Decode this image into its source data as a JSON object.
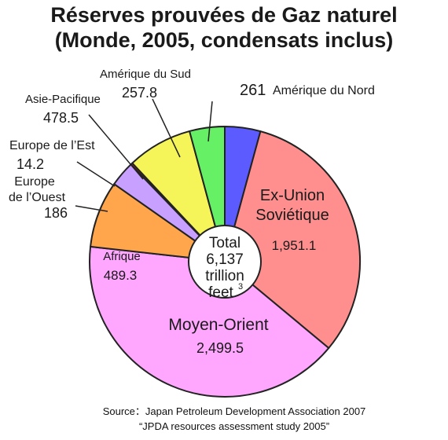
{
  "chart_data": {
    "type": "pie",
    "title": "Réserves prouvées de Gaz naturel",
    "subtitle": "(Monde, 2005, condensats inclus)",
    "center_label": {
      "line1": "Total",
      "line2": "6,137",
      "line3": "trillion",
      "line4": "feet",
      "unit_sup": "3"
    },
    "slices": [
      {
        "name": "Amérique du Nord",
        "name_lines": [
          "Amérique du Nord"
        ],
        "value": 261,
        "value_text": "261",
        "color": "#5b5bff"
      },
      {
        "name": "Ex-Union Soviétique",
        "name_lines": [
          "Ex-Union",
          "Soviétique"
        ],
        "value": 1951.1,
        "value_text": "1,951.1",
        "color": "#ff8f8f"
      },
      {
        "name": "Moyen-Orient",
        "name_lines": [
          "Moyen-Orient"
        ],
        "value": 2499.5,
        "value_text": "2,499.5",
        "color": "#ffa6ff"
      },
      {
        "name": "Afrique",
        "name_lines": [
          "Afrique"
        ],
        "value": 489.3,
        "value_text": "489.3",
        "color": "#ffa64d"
      },
      {
        "name": "Europe de l'Ouest",
        "name_lines": [
          "Europe",
          "de l’Ouest"
        ],
        "value": 186,
        "value_text": "186",
        "color": "#c8a0ff"
      },
      {
        "name": "Europe de l'Est",
        "name_lines": [
          "Europe de l’Est"
        ],
        "value": 14.2,
        "value_text": "14.2",
        "color": "#e02020"
      },
      {
        "name": "Asie-Pacifique",
        "name_lines": [
          "Asie-Pacifique"
        ],
        "value": 478.5,
        "value_text": "478.5",
        "color": "#f5f55a"
      },
      {
        "name": "Amérique du Sud",
        "name_lines": [
          "Amérique du Sud"
        ],
        "value": 257.8,
        "value_text": "257.8",
        "color": "#66f066"
      }
    ],
    "source_lines": [
      "Source：Japan Petroleum Development Association 2007",
      "“JPDA resources assessment study 2005”"
    ]
  }
}
